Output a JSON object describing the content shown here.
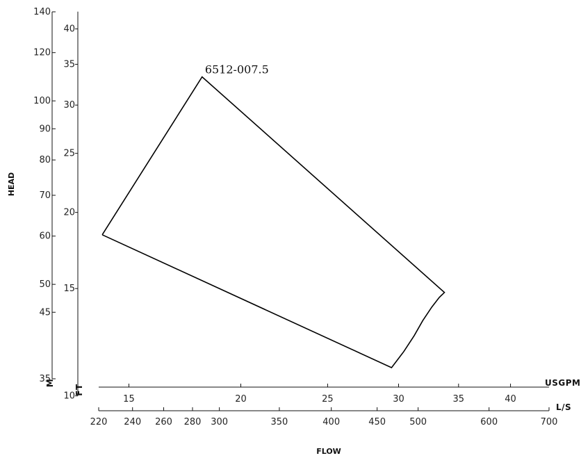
{
  "chart_data": {
    "type": "line",
    "title": "",
    "xlabel": "FLOW",
    "ylabel": "HEAD",
    "x_scale": "log",
    "y_scale": "log",
    "grid": false,
    "axes": {
      "y_ft": {
        "unit": "FT",
        "range": [
          35,
          140
        ],
        "ticks": [
          35,
          45,
          50,
          60,
          70,
          80,
          90,
          100,
          120,
          140
        ]
      },
      "y_m": {
        "unit": "M",
        "range": [
          10,
          42.7
        ],
        "ticks": [
          10,
          15,
          20,
          25,
          30,
          35,
          40
        ]
      },
      "x_ls": {
        "unit": "L/S",
        "range": [
          13.88,
          44.16
        ],
        "ticks": [
          15,
          20,
          25,
          30,
          35,
          40
        ]
      },
      "x_usgpm": {
        "unit": "USGPM",
        "range": [
          220,
          700
        ],
        "ticks": [
          220,
          240,
          260,
          280,
          300,
          350,
          400,
          450,
          500,
          600,
          700
        ]
      }
    },
    "series": [
      {
        "name": "6512-007.5",
        "x_unit": "USGPM",
        "y_unit": "FT",
        "points": [
          {
            "x": 222,
            "y": 60.3
          },
          {
            "x": 287,
            "y": 109.5
          },
          {
            "x": 535,
            "y": 48.5
          },
          {
            "x": 528,
            "y": 47.6
          },
          {
            "x": 518,
            "y": 45.9
          },
          {
            "x": 506,
            "y": 43.6
          },
          {
            "x": 495,
            "y": 41.2
          },
          {
            "x": 482,
            "y": 38.8
          },
          {
            "x": 467,
            "y": 36.5
          },
          {
            "x": 222,
            "y": 60.3
          }
        ],
        "label": "6512-007.5"
      }
    ]
  }
}
